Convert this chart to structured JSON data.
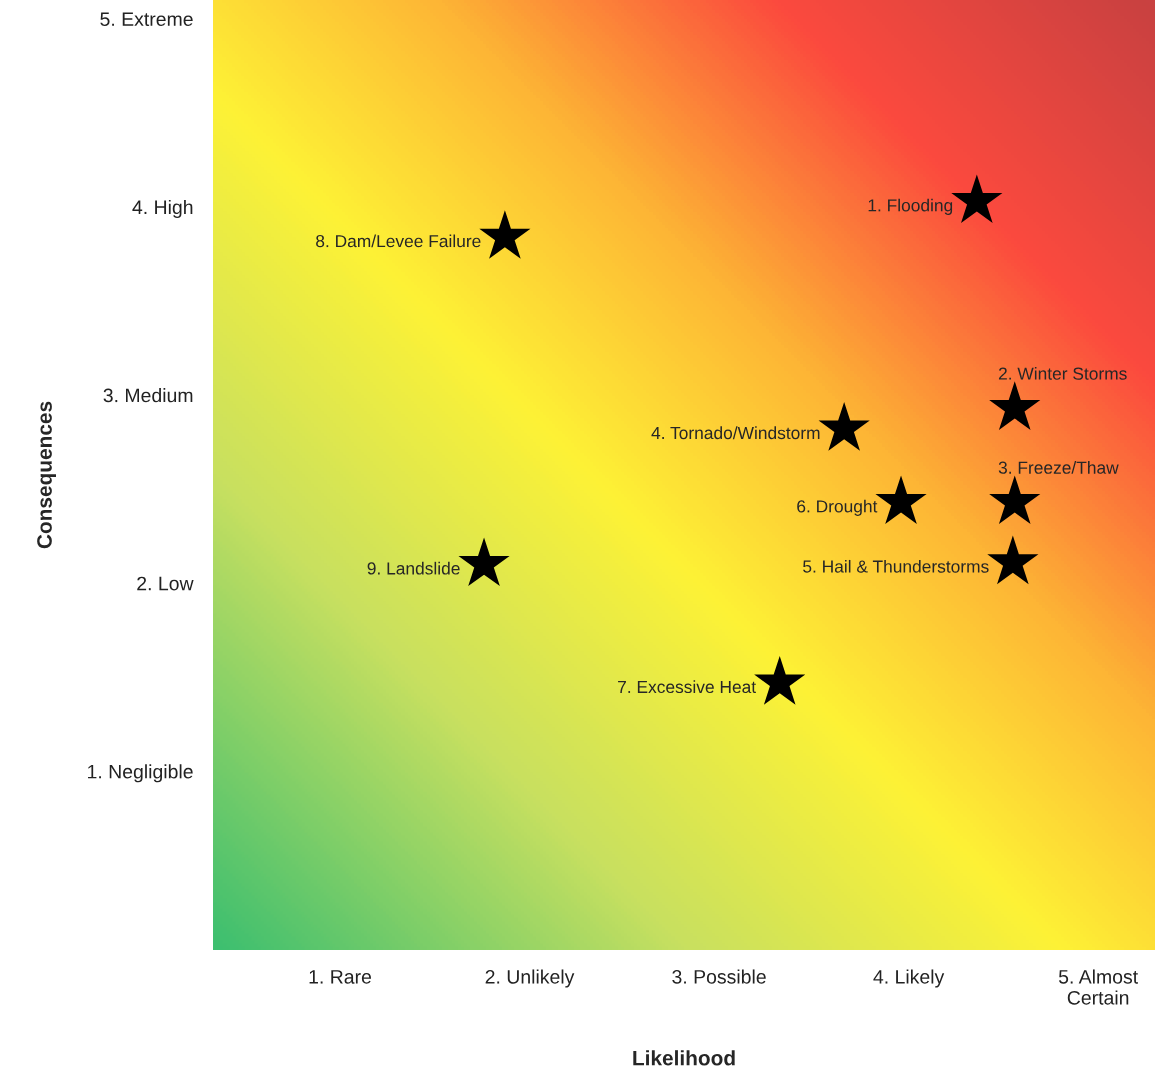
{
  "chart_data": {
    "type": "scatter",
    "xlabel": "Likelihood",
    "ylabel": "Consequences",
    "xlim": [
      0.33,
      5.3
    ],
    "ylim": [
      0.05,
      5.1
    ],
    "xticks": [
      {
        "value": 1,
        "label": "1. Rare"
      },
      {
        "value": 2,
        "label": "2. Unlikely"
      },
      {
        "value": 3,
        "label": "3. Possible"
      },
      {
        "value": 4,
        "label": "4. Likely"
      },
      {
        "value": 5,
        "label": "5. Almost\nCertain"
      }
    ],
    "yticks": [
      {
        "value": 1,
        "label": "1. Negligible"
      },
      {
        "value": 2,
        "label": "2. Low"
      },
      {
        "value": 3,
        "label": "3. Medium"
      },
      {
        "value": 4,
        "label": "4. High"
      },
      {
        "value": 5,
        "label": "5. Extreme"
      }
    ],
    "x": [
      4.36,
      4.56,
      4.56,
      3.66,
      4.55,
      3.96,
      3.32,
      1.87,
      1.76
    ],
    "series": [
      {
        "color": "#000000",
        "values": [
          4.03,
          2.93,
          2.43,
          2.82,
          2.11,
          2.43,
          1.47,
          3.84,
          2.1
        ]
      }
    ],
    "marker": "star",
    "grid": false,
    "legend": false,
    "annotations": [
      {
        "text": "1. Flooding",
        "x": 4.36,
        "y": 4.03
      },
      {
        "text": "2. Winter Storms",
        "x": 4.56,
        "y": 2.93
      },
      {
        "text": "3. Freeze/Thaw",
        "x": 4.56,
        "y": 2.43
      },
      {
        "text": "4. Tornado/Windstorm",
        "x": 3.66,
        "y": 2.82
      },
      {
        "text": "5. Hail & Thunderstorms",
        "x": 4.55,
        "y": 2.11
      },
      {
        "text": "6. Drought",
        "x": 3.96,
        "y": 2.43
      },
      {
        "text": "7. Excessive Heat",
        "x": 3.32,
        "y": 1.47
      },
      {
        "text": "8. Dam/Levee Failure",
        "x": 1.87,
        "y": 3.84
      },
      {
        "text": "9. Landslide",
        "x": 1.76,
        "y": 2.1
      }
    ]
  }
}
